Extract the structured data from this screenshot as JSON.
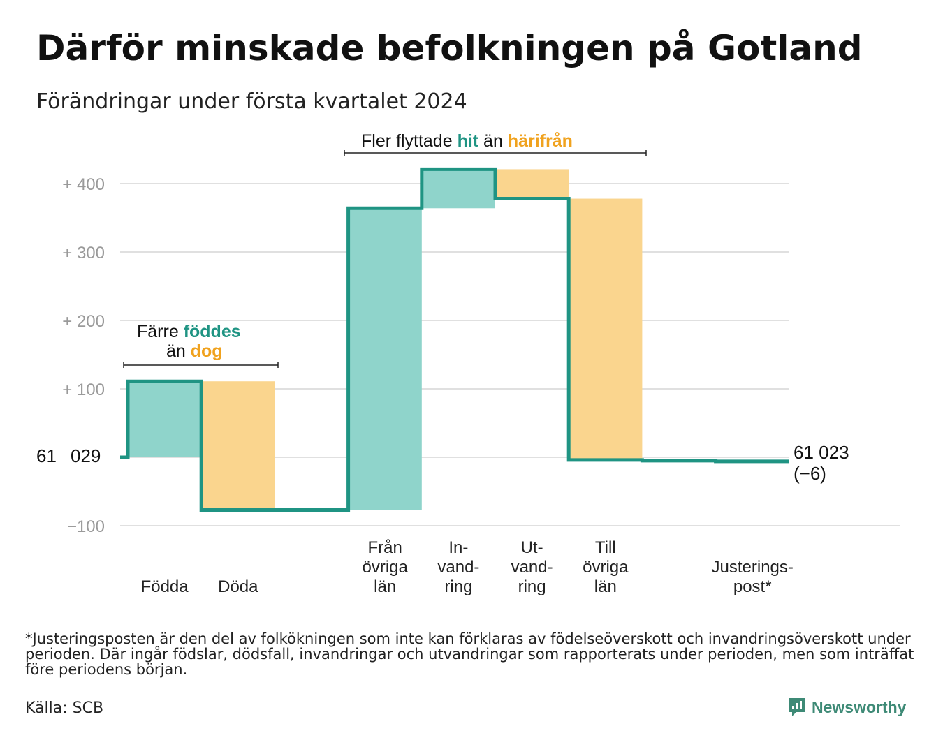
{
  "title": "Därför minskade befolkningen på Gotland",
  "subtitle": "Förändringar under första kvartalet 2024",
  "chart_data": {
    "type": "waterfall",
    "start_label": [
      "61",
      "029"
    ],
    "end_label": [
      "61 023",
      "(−6)"
    ],
    "y_ticks": [
      {
        "value": 400,
        "label": "+  400"
      },
      {
        "value": 300,
        "label": "+  300"
      },
      {
        "value": 200,
        "label": "+  200"
      },
      {
        "value": 100,
        "label": "+  100"
      },
      {
        "value": -100,
        "label": "−100"
      }
    ],
    "ylim": [
      -100,
      400
    ],
    "steps": [
      {
        "label": [
          "Födda"
        ],
        "value": 111,
        "kind": "in"
      },
      {
        "label": [
          "Döda"
        ],
        "value": -188,
        "kind": "out"
      },
      {
        "label": [
          ""
        ],
        "value": 0,
        "kind": "gap"
      },
      {
        "label": [
          "Från",
          "övriga",
          "län"
        ],
        "value": 441,
        "kind": "in"
      },
      {
        "label": [
          "In-",
          "vand-",
          "ring"
        ],
        "value": 57,
        "kind": "in"
      },
      {
        "label": [
          "Ut-",
          "vand-",
          "ring"
        ],
        "value": -43,
        "kind": "out"
      },
      {
        "label": [
          "Till",
          "övriga",
          "län"
        ],
        "value": -382,
        "kind": "out"
      },
      {
        "label": [
          ""
        ],
        "value": -1,
        "kind": "adj"
      },
      {
        "label": [
          "Justerings-",
          "post*"
        ],
        "value": -1,
        "kind": "adj"
      }
    ],
    "annotations": {
      "births": {
        "line1_pre": "Färre",
        "line1_hl": "föddes",
        "line2_pre": "än",
        "line2_hl": "dog"
      },
      "migration": {
        "pre": "Fler flyttade",
        "hl1": "hit",
        "mid": "än",
        "hl2": "härifrån"
      }
    },
    "colors": {
      "in": "#8fd4cb",
      "out": "#fad58e",
      "line": "#1f9483",
      "hl_in": "#1f9483",
      "hl_out": "#f0a21e",
      "grid": "#e0e0e0",
      "tick": "#9a9a9a"
    }
  },
  "footnote": "*Justeringsposten är den del av folkökningen som inte kan förklaras av födelseöverskott och invandringsöverskott under perioden. Där ingår födslar, dödsfall, invandringar och utvandringar som rapporterats under perioden, men som inträffat före periodens början.",
  "source": "Källa: SCB",
  "brand": {
    "name": "Newsworthy",
    "icon": "newsworthy-logo-icon",
    "color": "#3e8a76"
  }
}
